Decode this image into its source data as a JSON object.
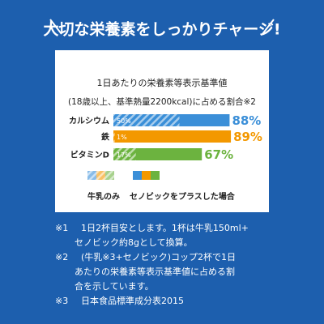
{
  "heading": "大切な栄養素をしっかりチャージ!",
  "chart_data": {
    "type": "bar",
    "orientation": "horizontal",
    "title": [
      "1日あたりの栄養素等表示基準値",
      "(18歳以上、基準熱量2200kcal)に占める割合※2"
    ],
    "categories": [
      "カルシウム",
      "鉄",
      "ビタミンD"
    ],
    "colors": [
      "#3b8fd8",
      "#f39800",
      "#6cb33f"
    ],
    "series": [
      {
        "name": "牛乳のみ",
        "style": "striped",
        "values": [
          50,
          1,
          17
        ],
        "value_labels": [
          "50%",
          "1%",
          "17%"
        ]
      },
      {
        "name": "セノビックをプラスした場合",
        "style": "solid",
        "values": [
          88,
          89,
          67
        ],
        "value_labels": [
          "88%",
          "89%",
          "67%"
        ]
      }
    ]
  },
  "notes": [
    {
      "mark": "※1",
      "lines": [
        "1日2杯目安とします。1杯は牛乳150ml+",
        "セノビック約8gとして換算。"
      ]
    },
    {
      "mark": "※2",
      "lines": [
        "(牛乳※3+セノビック)コップ2杯で1日",
        "あたりの栄養素等表示基準値に占める割",
        "合を示しています。"
      ]
    },
    {
      "mark": "※3",
      "lines": [
        "日本食品標準成分表2015"
      ]
    }
  ]
}
